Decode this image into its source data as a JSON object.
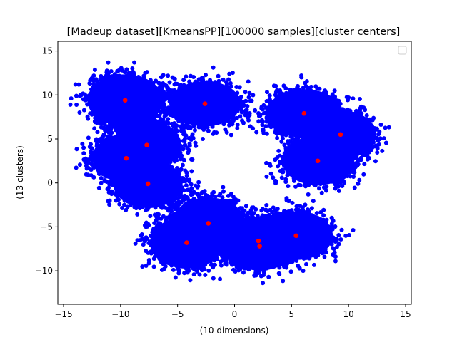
{
  "chart_data": {
    "type": "scatter",
    "title": "[Madeup dataset][KmeansPP][100000 samples][cluster centers]",
    "xlabel": "(10 dimensions)",
    "ylabel": "(13 clusters)",
    "xlim": [
      -15.5,
      15.5
    ],
    "ylim": [
      -13.8,
      16.1
    ],
    "xticks": [
      -15,
      -10,
      -5,
      0,
      5,
      10,
      15
    ],
    "yticks": [
      -10,
      -5,
      0,
      5,
      10,
      15
    ],
    "grid": false,
    "legend": {
      "placement": "upper right",
      "entries": []
    },
    "colors": {
      "samples": "#0000ff",
      "centers": "#ff0000"
    },
    "point_clouds": [
      {
        "cx": -9.6,
        "cy": 9.4,
        "rx": 3.6,
        "ry": 3.2
      },
      {
        "cx": -2.6,
        "cy": 9.0,
        "rx": 3.4,
        "ry": 2.8
      },
      {
        "cx": 6.1,
        "cy": 7.9,
        "rx": 3.6,
        "ry": 3.0
      },
      {
        "cx": 9.3,
        "cy": 5.5,
        "rx": 3.4,
        "ry": 3.0
      },
      {
        "cx": -7.7,
        "cy": 4.3,
        "rx": 3.3,
        "ry": 3.0
      },
      {
        "cx": -9.5,
        "cy": 2.8,
        "rx": 3.2,
        "ry": 3.0
      },
      {
        "cx": 7.3,
        "cy": 2.5,
        "rx": 3.4,
        "ry": 3.0
      },
      {
        "cx": -7.6,
        "cy": -0.1,
        "rx": 3.3,
        "ry": 3.0
      },
      {
        "cx": -2.3,
        "cy": -4.6,
        "rx": 3.5,
        "ry": 3.2
      },
      {
        "cx": 5.4,
        "cy": -6.0,
        "rx": 3.5,
        "ry": 3.0
      },
      {
        "cx": -4.2,
        "cy": -6.8,
        "rx": 3.5,
        "ry": 3.2
      },
      {
        "cx": 2.1,
        "cy": -6.6,
        "rx": 3.5,
        "ry": 3.0
      },
      {
        "cx": 2.2,
        "cy": -7.2,
        "rx": 3.4,
        "ry": 3.0
      }
    ],
    "cluster_centers": [
      {
        "x": -9.6,
        "y": 9.4
      },
      {
        "x": -2.6,
        "y": 9.0
      },
      {
        "x": 6.1,
        "y": 7.9
      },
      {
        "x": 9.3,
        "y": 5.5
      },
      {
        "x": -7.7,
        "y": 4.3
      },
      {
        "x": -9.5,
        "y": 2.8
      },
      {
        "x": 7.3,
        "y": 2.5
      },
      {
        "x": -7.6,
        "y": -0.1
      },
      {
        "x": -2.3,
        "y": -4.6
      },
      {
        "x": 5.4,
        "y": -6.0
      },
      {
        "x": -4.2,
        "y": -6.8
      },
      {
        "x": 2.1,
        "y": -6.6
      },
      {
        "x": 2.2,
        "y": -7.2
      }
    ]
  }
}
